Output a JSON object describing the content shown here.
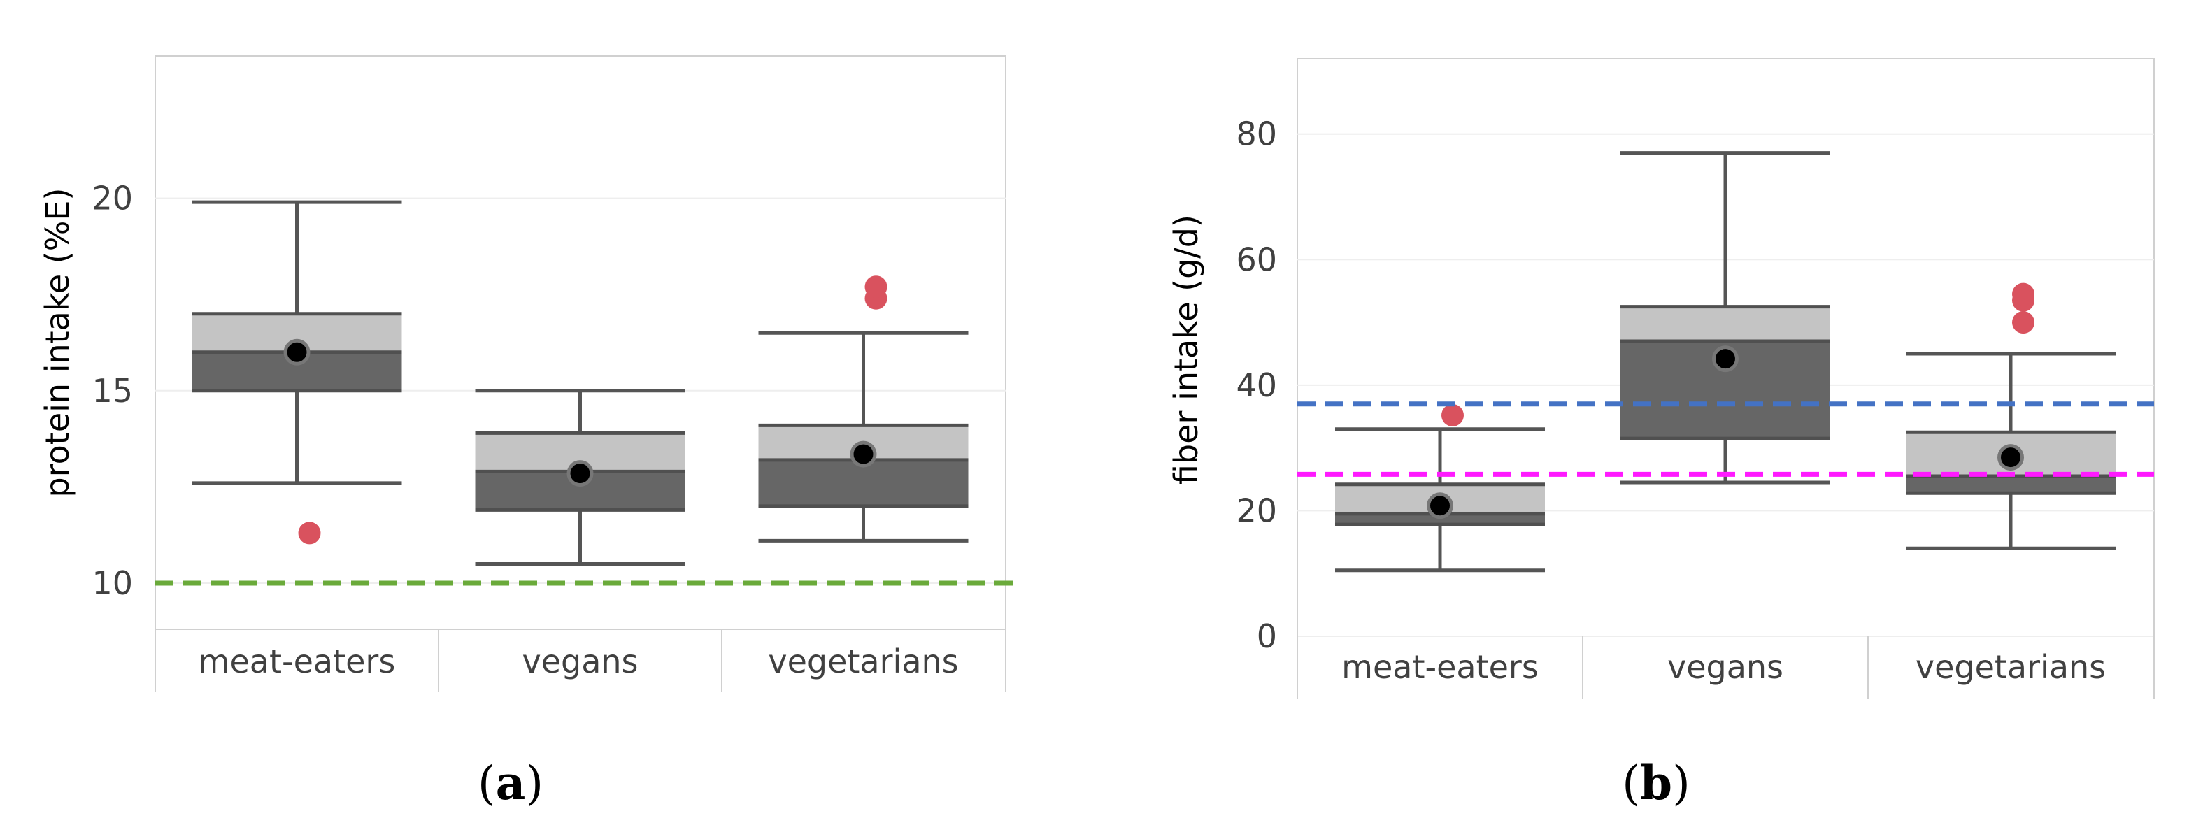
{
  "chart_data": [
    {
      "type": "box",
      "panel_label": "a",
      "title": "",
      "ylabel": "protein intake (%E)",
      "xlabel": "",
      "ylim": [
        8.8,
        23.7
      ],
      "yticks": [
        10,
        15,
        20
      ],
      "categories": [
        "meat-eaters",
        "vegans",
        "vegetarians"
      ],
      "boxes": [
        {
          "category": "meat-eaters",
          "whisker_low": 12.6,
          "q1": 15.0,
          "median": 16.0,
          "q3": 17.0,
          "whisker_high": 19.9,
          "mean": 16.0,
          "outliers": [
            11.3
          ]
        },
        {
          "category": "vegans",
          "whisker_low": 10.5,
          "q1": 11.9,
          "median": 12.9,
          "q3": 13.9,
          "whisker_high": 15.0,
          "mean": 12.85,
          "outliers": []
        },
        {
          "category": "vegetarians",
          "whisker_low": 11.1,
          "q1": 12.0,
          "median": 13.2,
          "q3": 14.1,
          "whisker_high": 16.5,
          "mean": 13.35,
          "outliers": [
            17.4,
            17.7
          ]
        }
      ],
      "reference_lines": [
        {
          "value": 10,
          "color": "#6aaa3a",
          "style": "dashed"
        }
      ],
      "colors": {
        "upper_box": "#c4c4c4",
        "lower_box": "#666666",
        "whisker": "#555555",
        "mean": "#000000",
        "outlier": "#d9525e",
        "grid": "#eeeeee",
        "frame": "#d0d0d0"
      }
    },
    {
      "type": "box",
      "panel_label": "b",
      "title": "",
      "ylabel": "fiber intake (g/d)",
      "xlabel": "",
      "ylim": [
        0,
        92
      ],
      "yticks": [
        0,
        20,
        40,
        60,
        80
      ],
      "categories": [
        "meat-eaters",
        "vegans",
        "vegetarians"
      ],
      "boxes": [
        {
          "category": "meat-eaters",
          "whisker_low": 10.5,
          "q1": 17.8,
          "median": 19.5,
          "q3": 24.2,
          "whisker_high": 33.0,
          "mean": 20.8,
          "outliers": [
            35.2
          ]
        },
        {
          "category": "vegans",
          "whisker_low": 24.5,
          "q1": 31.5,
          "median": 47.0,
          "q3": 52.5,
          "whisker_high": 77.0,
          "mean": 44.2,
          "outliers": []
        },
        {
          "category": "vegetarians",
          "whisker_low": 14.0,
          "q1": 22.8,
          "median": 25.5,
          "q3": 32.5,
          "whisker_high": 45.0,
          "mean": 28.5,
          "outliers": [
            50.0,
            53.5,
            54.5
          ]
        }
      ],
      "reference_lines": [
        {
          "value": 37,
          "color": "#4472c4",
          "style": "dashed"
        },
        {
          "value": 25.8,
          "color": "#ff1aff",
          "style": "dashed"
        }
      ],
      "colors": {
        "upper_box": "#c4c4c4",
        "lower_box": "#666666",
        "whisker": "#555555",
        "mean": "#000000",
        "outlier": "#d9525e",
        "grid": "#eeeeee",
        "frame": "#d0d0d0"
      }
    }
  ]
}
